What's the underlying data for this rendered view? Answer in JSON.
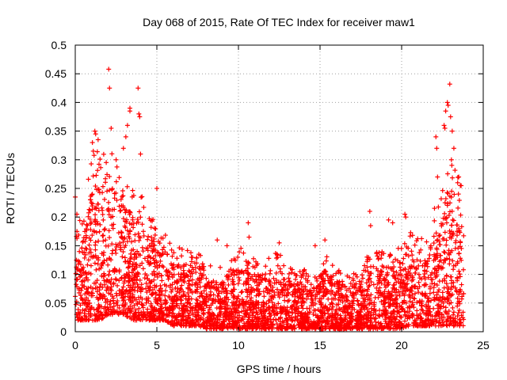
{
  "chart_data": {
    "type": "scatter",
    "title": "Day 068 of 2015, Rate Of TEC Index for receiver maw1",
    "xlabel": "GPS time / hours",
    "ylabel": "ROTI / TECUs",
    "xlim": [
      0,
      25
    ],
    "ylim": [
      0,
      0.5
    ],
    "xticks": [
      "0",
      "5",
      "10",
      "15",
      "20",
      "25"
    ],
    "yticks": [
      "0",
      "0.05",
      "0.1",
      "0.15",
      "0.2",
      "0.25",
      "0.3",
      "0.35",
      "0.4",
      "0.45",
      "0.5"
    ],
    "grid": true,
    "marker": "+",
    "color": "#ff0000",
    "envelope": {
      "x": [
        0,
        0.5,
        1,
        1.5,
        2,
        2.5,
        3,
        3.5,
        4,
        4.5,
        5,
        5.5,
        6,
        6.5,
        7,
        7.5,
        8,
        8.5,
        9,
        9.5,
        10,
        10.5,
        11,
        11.5,
        12,
        12.5,
        13,
        13.5,
        14,
        14.5,
        15,
        15.5,
        16,
        16.5,
        17,
        17.5,
        18,
        18.5,
        19,
        19.5,
        20,
        20.5,
        21,
        21.5,
        22,
        22.5,
        23,
        23.5,
        23.8
      ],
      "y_low": [
        0.02,
        0.02,
        0.02,
        0.02,
        0.03,
        0.03,
        0.03,
        0.02,
        0.02,
        0.02,
        0.02,
        0.02,
        0.01,
        0.01,
        0.01,
        0.01,
        0.005,
        0.005,
        0.005,
        0.005,
        0.005,
        0.005,
        0.005,
        0.005,
        0.005,
        0.005,
        0.005,
        0.005,
        0.005,
        0.005,
        0.005,
        0.005,
        0.005,
        0.005,
        0.005,
        0.005,
        0.005,
        0.005,
        0.005,
        0.005,
        0.005,
        0.01,
        0.01,
        0.01,
        0.01,
        0.01,
        0.01,
        0.01,
        0.01
      ],
      "y_high": [
        0.15,
        0.16,
        0.25,
        0.26,
        0.28,
        0.25,
        0.24,
        0.2,
        0.2,
        0.16,
        0.16,
        0.15,
        0.13,
        0.12,
        0.12,
        0.11,
        0.1,
        0.09,
        0.09,
        0.1,
        0.12,
        0.12,
        0.1,
        0.09,
        0.11,
        0.11,
        0.1,
        0.08,
        0.1,
        0.09,
        0.1,
        0.11,
        0.09,
        0.08,
        0.08,
        0.09,
        0.11,
        0.12,
        0.12,
        0.1,
        0.13,
        0.14,
        0.13,
        0.13,
        0.18,
        0.2,
        0.24,
        0.24,
        0.2
      ]
    },
    "outliers": [
      {
        "x": 2.05,
        "y": 0.458
      },
      {
        "x": 2.1,
        "y": 0.425
      },
      {
        "x": 3.85,
        "y": 0.425
      },
      {
        "x": 3.35,
        "y": 0.385
      },
      {
        "x": 3.35,
        "y": 0.39
      },
      {
        "x": 3.9,
        "y": 0.38
      },
      {
        "x": 3.95,
        "y": 0.375
      },
      {
        "x": 3.2,
        "y": 0.36
      },
      {
        "x": 2.2,
        "y": 0.355
      },
      {
        "x": 1.2,
        "y": 0.35
      },
      {
        "x": 1.25,
        "y": 0.345
      },
      {
        "x": 1.4,
        "y": 0.335
      },
      {
        "x": 3.1,
        "y": 0.34
      },
      {
        "x": 1.05,
        "y": 0.33
      },
      {
        "x": 2.95,
        "y": 0.32
      },
      {
        "x": 4.0,
        "y": 0.31
      },
      {
        "x": 0.0,
        "y": 0.235
      },
      {
        "x": 0.1,
        "y": 0.205
      },
      {
        "x": 5.0,
        "y": 0.25
      },
      {
        "x": 10.6,
        "y": 0.19
      },
      {
        "x": 10.65,
        "y": 0.165
      },
      {
        "x": 8.7,
        "y": 0.16
      },
      {
        "x": 12.5,
        "y": 0.155
      },
      {
        "x": 9.3,
        "y": 0.15
      },
      {
        "x": 14.7,
        "y": 0.15
      },
      {
        "x": 15.3,
        "y": 0.16
      },
      {
        "x": 18.05,
        "y": 0.21
      },
      {
        "x": 18.1,
        "y": 0.185
      },
      {
        "x": 19.2,
        "y": 0.195
      },
      {
        "x": 19.45,
        "y": 0.19
      },
      {
        "x": 20.2,
        "y": 0.205
      },
      {
        "x": 20.25,
        "y": 0.2
      },
      {
        "x": 22.95,
        "y": 0.432
      },
      {
        "x": 22.8,
        "y": 0.4
      },
      {
        "x": 22.85,
        "y": 0.395
      },
      {
        "x": 22.7,
        "y": 0.385
      },
      {
        "x": 23.0,
        "y": 0.375
      },
      {
        "x": 22.6,
        "y": 0.36
      },
      {
        "x": 22.65,
        "y": 0.355
      },
      {
        "x": 23.1,
        "y": 0.35
      },
      {
        "x": 22.1,
        "y": 0.34
      },
      {
        "x": 22.15,
        "y": 0.32
      },
      {
        "x": 23.05,
        "y": 0.3
      },
      {
        "x": 22.2,
        "y": 0.27
      },
      {
        "x": 23.5,
        "y": 0.27
      },
      {
        "x": 23.6,
        "y": 0.255
      },
      {
        "x": 23.2,
        "y": 0.32
      }
    ]
  }
}
